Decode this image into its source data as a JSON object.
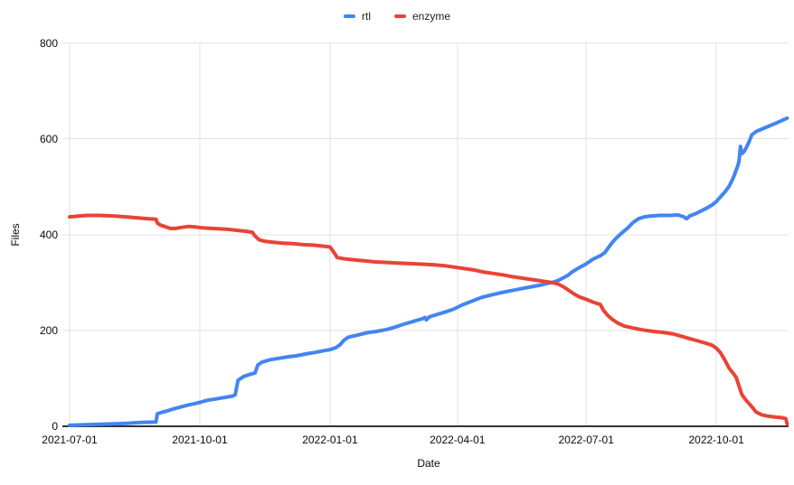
{
  "chart_data": {
    "type": "line",
    "title": "",
    "xlabel": "Date",
    "ylabel": "Files",
    "legend_position": "top-center",
    "grid": true,
    "x_domain": [
      "2021-07-01",
      "2022-11-21"
    ],
    "ylim": [
      0,
      800
    ],
    "y_ticks": [
      0,
      200,
      400,
      600,
      800
    ],
    "x_ticks": [
      "2021-07-01",
      "2021-10-01",
      "2022-01-01",
      "2022-04-01",
      "2022-07-01",
      "2022-10-01"
    ],
    "colors": {
      "grid": "#e2e2e2",
      "axis": "#333333",
      "tick_text": "#0a0a0a"
    },
    "series": [
      {
        "name": "rtl",
        "color": "#4285F4",
        "points": [
          [
            "2021-07-01",
            2
          ],
          [
            "2021-07-10",
            3
          ],
          [
            "2021-07-20",
            4
          ],
          [
            "2021-08-01",
            5
          ],
          [
            "2021-08-10",
            6
          ],
          [
            "2021-08-20",
            8
          ],
          [
            "2021-08-31",
            9
          ],
          [
            "2021-09-01",
            26
          ],
          [
            "2021-09-04",
            29
          ],
          [
            "2021-09-08",
            32
          ],
          [
            "2021-09-12",
            36
          ],
          [
            "2021-09-17",
            40
          ],
          [
            "2021-09-22",
            44
          ],
          [
            "2021-09-27",
            47
          ],
          [
            "2021-10-01",
            50
          ],
          [
            "2021-10-06",
            54
          ],
          [
            "2021-10-12",
            57
          ],
          [
            "2021-10-18",
            60
          ],
          [
            "2021-10-24",
            63
          ],
          [
            "2021-10-26",
            66
          ],
          [
            "2021-10-28",
            96
          ],
          [
            "2021-11-01",
            104
          ],
          [
            "2021-11-05",
            108
          ],
          [
            "2021-11-09",
            111
          ],
          [
            "2021-11-11",
            128
          ],
          [
            "2021-11-14",
            134
          ],
          [
            "2021-11-20",
            139
          ],
          [
            "2021-11-26",
            142
          ],
          [
            "2021-12-02",
            145
          ],
          [
            "2021-12-08",
            147
          ],
          [
            "2021-12-15",
            151
          ],
          [
            "2021-12-21",
            154
          ],
          [
            "2021-12-28",
            158
          ],
          [
            "2022-01-01",
            160
          ],
          [
            "2022-01-05",
            164
          ],
          [
            "2022-01-08",
            170
          ],
          [
            "2022-01-11",
            180
          ],
          [
            "2022-01-14",
            186
          ],
          [
            "2022-01-20",
            190
          ],
          [
            "2022-01-27",
            195
          ],
          [
            "2022-02-03",
            198
          ],
          [
            "2022-02-10",
            202
          ],
          [
            "2022-02-16",
            207
          ],
          [
            "2022-02-22",
            213
          ],
          [
            "2022-03-01",
            219
          ],
          [
            "2022-03-08",
            225
          ],
          [
            "2022-03-09",
            227
          ],
          [
            "2022-03-10",
            222
          ],
          [
            "2022-03-12",
            228
          ],
          [
            "2022-03-15",
            231
          ],
          [
            "2022-03-22",
            237
          ],
          [
            "2022-03-29",
            244
          ],
          [
            "2022-04-05",
            254
          ],
          [
            "2022-04-12",
            262
          ],
          [
            "2022-04-18",
            269
          ],
          [
            "2022-04-25",
            274
          ],
          [
            "2022-05-02",
            279
          ],
          [
            "2022-05-09",
            283
          ],
          [
            "2022-05-16",
            287
          ],
          [
            "2022-05-23",
            291
          ],
          [
            "2022-05-30",
            295
          ],
          [
            "2022-06-03",
            298
          ],
          [
            "2022-06-07",
            300
          ],
          [
            "2022-06-11",
            304
          ],
          [
            "2022-06-15",
            310
          ],
          [
            "2022-06-18",
            315
          ],
          [
            "2022-06-21",
            322
          ],
          [
            "2022-06-26",
            331
          ],
          [
            "2022-07-01",
            339
          ],
          [
            "2022-07-06",
            349
          ],
          [
            "2022-07-11",
            356
          ],
          [
            "2022-07-14",
            362
          ],
          [
            "2022-07-16",
            370
          ],
          [
            "2022-07-19",
            382
          ],
          [
            "2022-07-22",
            392
          ],
          [
            "2022-07-26",
            403
          ],
          [
            "2022-07-30",
            413
          ],
          [
            "2022-08-03",
            425
          ],
          [
            "2022-08-07",
            433
          ],
          [
            "2022-08-11",
            437
          ],
          [
            "2022-08-16",
            439
          ],
          [
            "2022-08-22",
            440
          ],
          [
            "2022-08-29",
            440
          ],
          [
            "2022-09-04",
            441
          ],
          [
            "2022-09-08",
            437
          ],
          [
            "2022-09-10",
            433
          ],
          [
            "2022-09-12",
            439
          ],
          [
            "2022-09-16",
            443
          ],
          [
            "2022-09-20",
            449
          ],
          [
            "2022-09-24",
            455
          ],
          [
            "2022-09-28",
            462
          ],
          [
            "2022-10-01",
            469
          ],
          [
            "2022-10-04",
            479
          ],
          [
            "2022-10-07",
            489
          ],
          [
            "2022-10-10",
            501
          ],
          [
            "2022-10-13",
            519
          ],
          [
            "2022-10-16",
            543
          ],
          [
            "2022-10-17",
            553
          ],
          [
            "2022-10-18",
            584
          ],
          [
            "2022-10-19",
            569
          ],
          [
            "2022-10-21",
            575
          ],
          [
            "2022-10-24",
            593
          ],
          [
            "2022-10-26",
            608
          ],
          [
            "2022-10-29",
            615
          ],
          [
            "2022-11-02",
            620
          ],
          [
            "2022-11-06",
            625
          ],
          [
            "2022-11-10",
            630
          ],
          [
            "2022-11-14",
            635
          ],
          [
            "2022-11-17",
            639
          ],
          [
            "2022-11-20",
            643
          ]
        ]
      },
      {
        "name": "enzyme",
        "color": "#EA4335",
        "points": [
          [
            "2021-07-01",
            437
          ],
          [
            "2021-07-08",
            439
          ],
          [
            "2021-07-14",
            440
          ],
          [
            "2021-07-22",
            440
          ],
          [
            "2021-08-01",
            439
          ],
          [
            "2021-08-10",
            437
          ],
          [
            "2021-08-18",
            435
          ],
          [
            "2021-08-26",
            433
          ],
          [
            "2021-08-31",
            432
          ],
          [
            "2021-09-01",
            424
          ],
          [
            "2021-09-03",
            420
          ],
          [
            "2021-09-06",
            417
          ],
          [
            "2021-09-10",
            413
          ],
          [
            "2021-09-14",
            413
          ],
          [
            "2021-09-18",
            415
          ],
          [
            "2021-09-23",
            417
          ],
          [
            "2021-09-28",
            416
          ],
          [
            "2021-10-03",
            414
          ],
          [
            "2021-10-09",
            413
          ],
          [
            "2021-10-15",
            412
          ],
          [
            "2021-10-21",
            411
          ],
          [
            "2021-10-27",
            409
          ],
          [
            "2021-11-02",
            407
          ],
          [
            "2021-11-07",
            405
          ],
          [
            "2021-11-09",
            397
          ],
          [
            "2021-11-12",
            389
          ],
          [
            "2021-11-16",
            386
          ],
          [
            "2021-11-22",
            384
          ],
          [
            "2021-11-29",
            382
          ],
          [
            "2021-12-06",
            381
          ],
          [
            "2021-12-13",
            379
          ],
          [
            "2021-12-20",
            378
          ],
          [
            "2021-12-27",
            376
          ],
          [
            "2022-01-01",
            374
          ],
          [
            "2022-01-04",
            362
          ],
          [
            "2022-01-06",
            352
          ],
          [
            "2022-01-12",
            349
          ],
          [
            "2022-01-19",
            347
          ],
          [
            "2022-01-26",
            345
          ],
          [
            "2022-02-02",
            343
          ],
          [
            "2022-02-09",
            342
          ],
          [
            "2022-02-16",
            341
          ],
          [
            "2022-02-23",
            340
          ],
          [
            "2022-03-02",
            339
          ],
          [
            "2022-03-09",
            338
          ],
          [
            "2022-03-16",
            337
          ],
          [
            "2022-03-23",
            335
          ],
          [
            "2022-03-30",
            332
          ],
          [
            "2022-04-06",
            329
          ],
          [
            "2022-04-13",
            326
          ],
          [
            "2022-04-19",
            322
          ],
          [
            "2022-04-26",
            319
          ],
          [
            "2022-05-03",
            316
          ],
          [
            "2022-05-10",
            312
          ],
          [
            "2022-05-17",
            309
          ],
          [
            "2022-05-24",
            306
          ],
          [
            "2022-05-31",
            303
          ],
          [
            "2022-06-07",
            300
          ],
          [
            "2022-06-11",
            297
          ],
          [
            "2022-06-15",
            291
          ],
          [
            "2022-06-18",
            285
          ],
          [
            "2022-06-22",
            277
          ],
          [
            "2022-06-26",
            270
          ],
          [
            "2022-07-01",
            265
          ],
          [
            "2022-07-06",
            259
          ],
          [
            "2022-07-11",
            254
          ],
          [
            "2022-07-13",
            243
          ],
          [
            "2022-07-16",
            232
          ],
          [
            "2022-07-19",
            224
          ],
          [
            "2022-07-23",
            216
          ],
          [
            "2022-07-28",
            209
          ],
          [
            "2022-08-03",
            205
          ],
          [
            "2022-08-10",
            201
          ],
          [
            "2022-08-17",
            198
          ],
          [
            "2022-08-24",
            196
          ],
          [
            "2022-08-31",
            193
          ],
          [
            "2022-09-06",
            188
          ],
          [
            "2022-09-12",
            183
          ],
          [
            "2022-09-18",
            178
          ],
          [
            "2022-09-24",
            173
          ],
          [
            "2022-09-28",
            169
          ],
          [
            "2022-10-01",
            163
          ],
          [
            "2022-10-04",
            153
          ],
          [
            "2022-10-07",
            138
          ],
          [
            "2022-10-10",
            121
          ],
          [
            "2022-10-13",
            110
          ],
          [
            "2022-10-15",
            102
          ],
          [
            "2022-10-17",
            84
          ],
          [
            "2022-10-19",
            66
          ],
          [
            "2022-10-22",
            54
          ],
          [
            "2022-10-26",
            41
          ],
          [
            "2022-10-29",
            30
          ],
          [
            "2022-11-02",
            24
          ],
          [
            "2022-11-07",
            21
          ],
          [
            "2022-11-12",
            19
          ],
          [
            "2022-11-16",
            18
          ],
          [
            "2022-11-19",
            16
          ],
          [
            "2022-11-20",
            5
          ]
        ]
      }
    ]
  }
}
